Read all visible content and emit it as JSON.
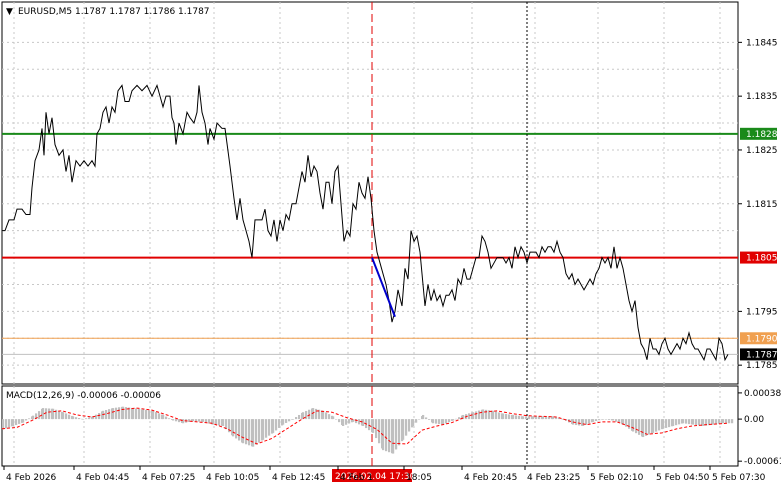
{
  "header": {
    "menu_arrow": "▼",
    "symbol_info": "EURUSD,M5  1.1787 1.1787 1.1786 1.1787"
  },
  "macd_header": "MACD(12,26,9) -0.00006 -0.00006",
  "chart_data": {
    "type": "line",
    "symbol": "EURUSD",
    "timeframe": "M5",
    "ohlc_last": {
      "open": 1.1787,
      "high": 1.1787,
      "low": 1.1786,
      "close": 1.1787
    },
    "price_axis": {
      "range": [
        1.17815,
        1.18525
      ],
      "tick_labels": [
        "1.1845",
        "1.1835",
        "1.1825",
        "1.1815",
        "1.1795",
        "1.1785"
      ],
      "tick_values": [
        1.1845,
        1.1835,
        1.1825,
        1.1815,
        1.1795,
        1.1785
      ]
    },
    "time_axis": {
      "labels": [
        "4 Feb 2026",
        "4 Feb 04:45",
        "4 Feb 07:25",
        "4 Feb 10:05",
        "4 Feb 12:45",
        "4 Feb 1",
        "18:05",
        "4 Feb 20:45",
        "4 Feb 23:25",
        "5 Feb 02:10",
        "5 Feb 04:50",
        "5 Feb 07:30"
      ],
      "highlight_label": "2026.02.04 17:30"
    },
    "levels": [
      {
        "label": "1.1828",
        "value": 1.1828,
        "color": "#1a8a1a"
      },
      {
        "label": "1.1805",
        "value": 1.1805,
        "color": "#e00000"
      },
      {
        "label": "1.1790",
        "value": 1.179,
        "color": "#f0a050"
      },
      {
        "label": "1.1787",
        "value": 1.1787,
        "color": "#000000"
      }
    ],
    "price_series": [
      [
        0,
        1.181
      ],
      [
        3,
        1.181
      ],
      [
        7,
        1.1812
      ],
      [
        12,
        1.1812
      ],
      [
        15,
        1.1814
      ],
      [
        20,
        1.1814
      ],
      [
        24,
        1.1813
      ],
      [
        28,
        1.1813
      ],
      [
        30,
        1.1818
      ],
      [
        33,
        1.1823
      ],
      [
        37,
        1.1825
      ],
      [
        40,
        1.1829
      ],
      [
        42,
        1.1824
      ],
      [
        44,
        1.1832
      ],
      [
        47,
        1.1828
      ],
      [
        50,
        1.1831
      ],
      [
        53,
        1.1826
      ],
      [
        57,
        1.1824
      ],
      [
        61,
        1.1825
      ],
      [
        64,
        1.1821
      ],
      [
        67,
        1.1824
      ],
      [
        70,
        1.1819
      ],
      [
        74,
        1.1823
      ],
      [
        78,
        1.1822
      ],
      [
        82,
        1.1823
      ],
      [
        86,
        1.1822
      ],
      [
        90,
        1.1823
      ],
      [
        93,
        1.1822
      ],
      [
        95,
        1.1828
      ],
      [
        98,
        1.1829
      ],
      [
        101,
        1.1832
      ],
      [
        104,
        1.1833
      ],
      [
        107,
        1.183
      ],
      [
        110,
        1.1833
      ],
      [
        113,
        1.1832
      ],
      [
        116,
        1.1836
      ],
      [
        120,
        1.1837
      ],
      [
        123,
        1.1834
      ],
      [
        127,
        1.1834
      ],
      [
        130,
        1.1836
      ],
      [
        135,
        1.1837
      ],
      [
        140,
        1.1836
      ],
      [
        145,
        1.1837
      ],
      [
        150,
        1.1835
      ],
      [
        155,
        1.1837
      ],
      [
        158,
        1.1835
      ],
      [
        161,
        1.1833
      ],
      [
        164,
        1.1835
      ],
      [
        168,
        1.1835
      ],
      [
        170,
        1.1831
      ],
      [
        172,
        1.183
      ],
      [
        174,
        1.1826
      ],
      [
        177,
        1.183
      ],
      [
        181,
        1.1828
      ],
      [
        185,
        1.1832
      ],
      [
        188,
        1.1831
      ],
      [
        192,
        1.183
      ],
      [
        195,
        1.1832
      ],
      [
        197,
        1.1837
      ],
      [
        200,
        1.1832
      ],
      [
        203,
        1.183
      ],
      [
        206,
        1.1826
      ],
      [
        208,
        1.1829
      ],
      [
        212,
        1.1827
      ],
      [
        215,
        1.183
      ],
      [
        220,
        1.1829
      ],
      [
        223,
        1.1829
      ],
      [
        228,
        1.1822
      ],
      [
        232,
        1.1816
      ],
      [
        235,
        1.1812
      ],
      [
        238,
        1.1816
      ],
      [
        241,
        1.1812
      ],
      [
        244,
        1.181
      ],
      [
        247,
        1.1808
      ],
      [
        250,
        1.1805
      ],
      [
        253,
        1.1812
      ],
      [
        256,
        1.1812
      ],
      [
        260,
        1.1812
      ],
      [
        263,
        1.1814
      ],
      [
        266,
        1.181
      ],
      [
        269,
        1.1809
      ],
      [
        272,
        1.1812
      ],
      [
        275,
        1.1808
      ],
      [
        278,
        1.1812
      ],
      [
        281,
        1.181
      ],
      [
        284,
        1.1813
      ],
      [
        287,
        1.1812
      ],
      [
        290,
        1.1815
      ],
      [
        294,
        1.1815
      ],
      [
        297,
        1.1818
      ],
      [
        300,
        1.1821
      ],
      [
        303,
        1.1819
      ],
      [
        306,
        1.1824
      ],
      [
        309,
        1.182
      ],
      [
        312,
        1.1822
      ],
      [
        315,
        1.1821
      ],
      [
        318,
        1.1817
      ],
      [
        321,
        1.1814
      ],
      [
        324,
        1.1819
      ],
      [
        327,
        1.1819
      ],
      [
        330,
        1.1815
      ],
      [
        333,
        1.1821
      ],
      [
        336,
        1.1822
      ],
      [
        339,
        1.1815
      ],
      [
        342,
        1.1808
      ],
      [
        345,
        1.181
      ],
      [
        348,
        1.1809
      ],
      [
        351,
        1.1815
      ],
      [
        354,
        1.1814
      ],
      [
        357,
        1.1819
      ],
      [
        360,
        1.1817
      ],
      [
        363,
        1.1816
      ],
      [
        366,
        1.182
      ],
      [
        369,
        1.1816
      ],
      [
        372,
        1.181
      ],
      [
        375,
        1.1806
      ],
      [
        378,
        1.1804
      ],
      [
        381,
        1.1802
      ],
      [
        384,
        1.18
      ],
      [
        387,
        1.1797
      ],
      [
        390,
        1.1793
      ],
      [
        393,
        1.1795
      ],
      [
        396,
        1.1799
      ],
      [
        400,
        1.1796
      ],
      [
        403,
        1.1803
      ],
      [
        406,
        1.1801
      ],
      [
        409,
        1.181
      ],
      [
        412,
        1.1808
      ],
      [
        415,
        1.1809
      ],
      [
        418,
        1.1806
      ],
      [
        420,
        1.1802
      ],
      [
        423,
        1.1796
      ],
      [
        426,
        1.18
      ],
      [
        429,
        1.1797
      ],
      [
        432,
        1.1799
      ],
      [
        435,
        1.1797
      ],
      [
        438,
        1.1798
      ],
      [
        441,
        1.1796
      ],
      [
        444,
        1.1798
      ],
      [
        447,
        1.1798
      ],
      [
        450,
        1.1799
      ],
      [
        453,
        1.1797
      ],
      [
        456,
        1.1801
      ],
      [
        459,
        1.18
      ],
      [
        462,
        1.1803
      ],
      [
        465,
        1.1801
      ],
      [
        468,
        1.1801
      ],
      [
        471,
        1.1803
      ],
      [
        474,
        1.1805
      ],
      [
        477,
        1.1805
      ],
      [
        480,
        1.1809
      ],
      [
        483,
        1.1808
      ],
      [
        486,
        1.1806
      ],
      [
        489,
        1.1803
      ],
      [
        492,
        1.1804
      ],
      [
        495,
        1.1805
      ],
      [
        498,
        1.1805
      ],
      [
        501,
        1.1805
      ],
      [
        504,
        1.1804
      ],
      [
        507,
        1.1805
      ],
      [
        510,
        1.1803
      ],
      [
        513,
        1.1807
      ],
      [
        516,
        1.1805
      ],
      [
        519,
        1.1807
      ],
      [
        522,
        1.1806
      ],
      [
        525,
        1.1804
      ],
      [
        528,
        1.1806
      ],
      [
        531,
        1.1806
      ],
      [
        534,
        1.1806
      ],
      [
        537,
        1.1805
      ],
      [
        540,
        1.1807
      ],
      [
        543,
        1.1806
      ],
      [
        546,
        1.1807
      ],
      [
        549,
        1.1807
      ],
      [
        552,
        1.1806
      ],
      [
        555,
        1.1808
      ],
      [
        558,
        1.1806
      ],
      [
        561,
        1.1805
      ],
      [
        564,
        1.1802
      ],
      [
        567,
        1.1801
      ],
      [
        570,
        1.1802
      ],
      [
        573,
        1.18
      ],
      [
        576,
        1.1801
      ],
      [
        579,
        1.18
      ],
      [
        582,
        1.1799
      ],
      [
        585,
        1.18
      ],
      [
        588,
        1.1801
      ],
      [
        591,
        1.18
      ],
      [
        594,
        1.1802
      ],
      [
        597,
        1.1803
      ],
      [
        600,
        1.1805
      ],
      [
        603,
        1.1804
      ],
      [
        606,
        1.1805
      ],
      [
        609,
        1.1803
      ],
      [
        612,
        1.1807
      ],
      [
        615,
        1.1803
      ],
      [
        618,
        1.1805
      ],
      [
        621,
        1.1803
      ],
      [
        624,
        1.18
      ],
      [
        627,
        1.1797
      ],
      [
        630,
        1.1795
      ],
      [
        633,
        1.1797
      ],
      [
        636,
        1.1792
      ],
      [
        639,
        1.1789
      ],
      [
        642,
        1.1788
      ],
      [
        645,
        1.1786
      ],
      [
        648,
        1.179
      ],
      [
        651,
        1.1788
      ],
      [
        654,
        1.1788
      ],
      [
        657,
        1.1787
      ],
      [
        660,
        1.1789
      ],
      [
        663,
        1.179
      ],
      [
        666,
        1.1788
      ],
      [
        669,
        1.1787
      ],
      [
        672,
        1.1788
      ],
      [
        675,
        1.1789
      ],
      [
        678,
        1.1788
      ],
      [
        681,
        1.179
      ],
      [
        684,
        1.1789
      ],
      [
        687,
        1.1791
      ],
      [
        690,
        1.1789
      ],
      [
        693,
        1.1788
      ],
      [
        696,
        1.1788
      ],
      [
        699,
        1.1787
      ],
      [
        702,
        1.1786
      ],
      [
        705,
        1.1788
      ],
      [
        708,
        1.1788
      ],
      [
        711,
        1.1787
      ],
      [
        714,
        1.1786
      ],
      [
        717,
        1.179
      ],
      [
        720,
        1.1789
      ],
      [
        723,
        1.1786
      ],
      [
        726,
        1.1787
      ]
    ],
    "trend_segment": {
      "from": [
        370,
        1.1805
      ],
      "to": [
        393,
        1.1794
      ],
      "color": "#0000cc"
    },
    "macd": {
      "axis_labels": [
        "0.00038",
        "0.00",
        "-0.00061"
      ],
      "axis_values": [
        0.00038,
        0.0,
        -0.00061
      ],
      "range": [
        -0.00068,
        0.00048
      ],
      "histogram": [
        [
          0,
          -0.00015
        ],
        [
          10,
          -0.0001
        ],
        [
          20,
          -5e-05
        ],
        [
          30,
          5e-05
        ],
        [
          40,
          0.00016
        ],
        [
          50,
          0.00015
        ],
        [
          60,
          0.0001
        ],
        [
          70,
          4e-05
        ],
        [
          80,
          0.0
        ],
        [
          90,
          4e-05
        ],
        [
          100,
          0.00012
        ],
        [
          110,
          0.00016
        ],
        [
          120,
          0.00018
        ],
        [
          130,
          0.00016
        ],
        [
          140,
          0.00014
        ],
        [
          150,
          0.00012
        ],
        [
          160,
          6e-05
        ],
        [
          170,
          -2e-05
        ],
        [
          180,
          -6e-05
        ],
        [
          190,
          -3e-05
        ],
        [
          200,
          -4e-05
        ],
        [
          210,
          -8e-05
        ],
        [
          220,
          -0.0001
        ],
        [
          230,
          -0.00025
        ],
        [
          240,
          -0.00035
        ],
        [
          250,
          -0.0004
        ],
        [
          260,
          -0.0003
        ],
        [
          270,
          -0.0002
        ],
        [
          280,
          -8e-05
        ],
        [
          290,
          0.0
        ],
        [
          300,
          0.0001
        ],
        [
          310,
          0.00016
        ],
        [
          320,
          0.00012
        ],
        [
          330,
          4e-05
        ],
        [
          340,
          -0.0001
        ],
        [
          350,
          -4e-05
        ],
        [
          360,
          -0.0001
        ],
        [
          370,
          -0.0002
        ],
        [
          380,
          -0.00045
        ],
        [
          390,
          -0.0005
        ],
        [
          400,
          -0.0003
        ],
        [
          410,
          -0.0001
        ],
        [
          420,
          6e-05
        ],
        [
          430,
          -6e-05
        ],
        [
          440,
          -8e-05
        ],
        [
          450,
          -2e-05
        ],
        [
          460,
          6e-05
        ],
        [
          470,
          0.0001
        ],
        [
          480,
          0.00014
        ],
        [
          490,
          0.00012
        ],
        [
          500,
          8e-05
        ],
        [
          510,
          6e-05
        ],
        [
          520,
          4e-05
        ],
        [
          530,
          4e-05
        ],
        [
          540,
          4e-05
        ],
        [
          550,
          4e-05
        ],
        [
          560,
          0.0
        ],
        [
          570,
          -8e-05
        ],
        [
          580,
          -0.0001
        ],
        [
          590,
          -4e-05
        ],
        [
          600,
          0.0
        ],
        [
          610,
          -2e-05
        ],
        [
          620,
          -8e-05
        ],
        [
          630,
          -0.00018
        ],
        [
          640,
          -0.00026
        ],
        [
          650,
          -0.0002
        ],
        [
          660,
          -0.00014
        ],
        [
          670,
          -0.0001
        ],
        [
          680,
          -6e-05
        ],
        [
          690,
          -8e-05
        ],
        [
          700,
          -0.0001
        ],
        [
          710,
          -8e-05
        ],
        [
          720,
          -6e-05
        ]
      ],
      "signal": [
        [
          0,
          -0.00014
        ],
        [
          15,
          -0.00012
        ],
        [
          30,
          -2e-05
        ],
        [
          45,
          0.0001
        ],
        [
          60,
          0.00012
        ],
        [
          75,
          6e-05
        ],
        [
          90,
          3e-05
        ],
        [
          105,
          8e-05
        ],
        [
          120,
          0.00014
        ],
        [
          135,
          0.00016
        ],
        [
          150,
          0.00013
        ],
        [
          165,
          6e-05
        ],
        [
          180,
          -2e-05
        ],
        [
          195,
          -4e-05
        ],
        [
          210,
          -6e-05
        ],
        [
          225,
          -0.00014
        ],
        [
          240,
          -0.00026
        ],
        [
          255,
          -0.00036
        ],
        [
          270,
          -0.00028
        ],
        [
          285,
          -0.00014
        ],
        [
          300,
          0.0
        ],
        [
          315,
          0.00012
        ],
        [
          330,
          0.0001
        ],
        [
          345,
          2e-05
        ],
        [
          360,
          -4e-05
        ],
        [
          375,
          -0.00015
        ],
        [
          390,
          -0.00035
        ],
        [
          405,
          -0.00036
        ],
        [
          420,
          -0.00016
        ],
        [
          435,
          -0.0001
        ],
        [
          450,
          -5e-05
        ],
        [
          465,
          4e-05
        ],
        [
          480,
          0.0001
        ],
        [
          495,
          0.00012
        ],
        [
          510,
          8e-05
        ],
        [
          525,
          5e-05
        ],
        [
          540,
          4e-05
        ],
        [
          555,
          3e-05
        ],
        [
          570,
          -4e-05
        ],
        [
          585,
          -8e-05
        ],
        [
          600,
          -4e-05
        ],
        [
          615,
          -4e-05
        ],
        [
          630,
          -0.00012
        ],
        [
          645,
          -0.00022
        ],
        [
          660,
          -0.0002
        ],
        [
          675,
          -0.00014
        ],
        [
          690,
          -0.0001
        ],
        [
          705,
          -8e-05
        ],
        [
          726,
          -6e-05
        ]
      ]
    },
    "colors": {
      "price_line": "#000000",
      "grid": "#c8c8c8",
      "highlight_vline": "#e00000",
      "dotted_vline": "#000000",
      "macd_histogram": "#c0c0c0",
      "macd_signal": "#ff0000",
      "current_price_bg": "#000000",
      "highlight_time_bg": "#e00000"
    }
  }
}
